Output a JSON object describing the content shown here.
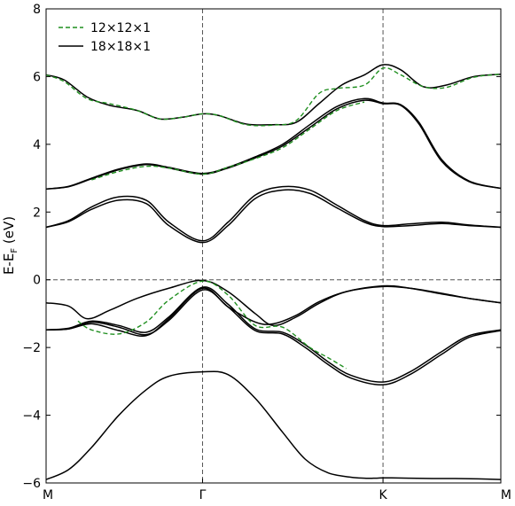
{
  "chart_data": {
    "type": "line",
    "title": "",
    "ylabel": "E-E",
    "ylabel_sub": "F",
    "ylabel_unit": " (eV)",
    "ylim": [
      -6,
      8
    ],
    "yticks": [
      "8",
      "6",
      "4",
      "2",
      "0",
      "−2",
      "−4",
      "−6"
    ],
    "yticks_values": [
      8,
      6,
      4,
      2,
      0,
      -2,
      -4,
      -6
    ],
    "xlim": [
      0,
      1
    ],
    "xticks": [
      "M",
      "Γ",
      "K",
      "M"
    ],
    "xticks_values": [
      0,
      0.3441,
      0.7409,
      1.0
    ],
    "fermi_level": 0,
    "grid": false,
    "legend_position": "top-left",
    "legend": [
      {
        "label": "12×12×1",
        "style": "dashed",
        "color": "#1f8f1f"
      },
      {
        "label": "18×18×1",
        "style": "solid",
        "color": "#000000"
      }
    ],
    "series": [
      {
        "group": "18×18×1",
        "color": "#000000",
        "style": "solid",
        "x": [
          0,
          0.05,
          0.1,
          0.16,
          0.22,
          0.27,
          0.3441,
          0.4,
          0.46,
          0.52,
          0.57,
          0.62,
          0.67,
          0.7,
          0.72,
          0.7409,
          0.76,
          0.8,
          0.85,
          0.9,
          0.95,
          1.0
        ],
        "y": [
          -5.9,
          -5.6,
          -4.95,
          -4.0,
          -3.25,
          -2.85,
          -2.72,
          -2.8,
          -3.5,
          -4.5,
          -5.3,
          -5.7,
          -5.83,
          -5.86,
          -5.86,
          -5.85,
          -5.85,
          -5.86,
          -5.87,
          -5.87,
          -5.88,
          -5.9
        ]
      },
      {
        "group": "18×18×1",
        "color": "#000000",
        "style": "solid",
        "x": [
          0,
          0.05,
          0.1,
          0.16,
          0.22,
          0.27,
          0.3441,
          0.4,
          0.46,
          0.52,
          0.57,
          0.62,
          0.67,
          0.7409,
          0.8,
          0.87,
          0.93,
          1.0
        ],
        "y": [
          -1.48,
          -1.45,
          -1.25,
          -1.4,
          -1.62,
          -1.2,
          -0.3,
          -0.8,
          -1.5,
          -1.6,
          -2.0,
          -2.5,
          -2.9,
          -3.1,
          -2.8,
          -2.2,
          -1.7,
          -1.5
        ]
      },
      {
        "group": "18×18×1",
        "color": "#000000",
        "style": "solid",
        "x": [
          0,
          0.05,
          0.1,
          0.16,
          0.22,
          0.27,
          0.3441,
          0.4,
          0.46,
          0.52,
          0.57,
          0.62,
          0.67,
          0.7409,
          0.8,
          0.87,
          0.93,
          1.0
        ],
        "y": [
          -1.48,
          -1.43,
          -1.22,
          -1.35,
          -1.55,
          -1.1,
          -0.22,
          -0.72,
          -1.45,
          -1.55,
          -1.92,
          -2.42,
          -2.82,
          -3.02,
          -2.72,
          -2.12,
          -1.65,
          -1.48
        ]
      },
      {
        "group": "18×18×1",
        "color": "#000000",
        "style": "solid",
        "x": [
          0,
          0.05,
          0.09,
          0.14,
          0.2,
          0.27,
          0.3441,
          0.4,
          0.46,
          0.5,
          0.55,
          0.6,
          0.66,
          0.7409,
          0.8,
          0.87,
          0.93,
          1.0
        ],
        "y": [
          -0.68,
          -0.78,
          -1.15,
          -0.9,
          -0.55,
          -0.25,
          -0.02,
          -0.35,
          -1.0,
          -1.35,
          -1.1,
          -0.7,
          -0.35,
          -0.18,
          -0.25,
          -0.42,
          -0.55,
          -0.68
        ]
      },
      {
        "group": "18×18×1",
        "color": "#000000",
        "style": "solid",
        "x": [
          0,
          0.05,
          0.1,
          0.16,
          0.22,
          0.27,
          0.3441,
          0.4,
          0.46,
          0.5,
          0.55,
          0.6,
          0.66,
          0.7409,
          0.8,
          0.87,
          0.93,
          1.0
        ],
        "y": [
          -1.48,
          -1.45,
          -1.3,
          -1.5,
          -1.65,
          -1.15,
          -0.25,
          -0.8,
          -1.25,
          -1.3,
          -1.05,
          -0.65,
          -0.35,
          -0.2,
          -0.25,
          -0.4,
          -0.55,
          -0.68
        ]
      },
      {
        "group": "18×18×1",
        "color": "#000000",
        "style": "solid",
        "x": [
          0,
          0.05,
          0.1,
          0.16,
          0.22,
          0.27,
          0.3441,
          0.4,
          0.46,
          0.52,
          0.58,
          0.64,
          0.7,
          0.7409,
          0.8,
          0.87,
          0.93,
          1.0
        ],
        "y": [
          1.55,
          1.75,
          2.15,
          2.45,
          2.35,
          1.7,
          1.15,
          1.7,
          2.5,
          2.75,
          2.65,
          2.2,
          1.75,
          1.6,
          1.65,
          1.7,
          1.62,
          1.55
        ]
      },
      {
        "group": "18×18×1",
        "color": "#000000",
        "style": "solid",
        "x": [
          0,
          0.05,
          0.1,
          0.16,
          0.22,
          0.27,
          0.3441,
          0.4,
          0.46,
          0.52,
          0.58,
          0.64,
          0.7,
          0.7409,
          0.8,
          0.87,
          0.93,
          1.0
        ],
        "y": [
          1.55,
          1.72,
          2.08,
          2.35,
          2.25,
          1.6,
          1.1,
          1.6,
          2.4,
          2.65,
          2.55,
          2.12,
          1.7,
          1.57,
          1.6,
          1.66,
          1.6,
          1.55
        ]
      },
      {
        "group": "18×18×1",
        "color": "#000000",
        "style": "solid",
        "x": [
          0,
          0.05,
          0.1,
          0.16,
          0.22,
          0.27,
          0.3441,
          0.4,
          0.46,
          0.52,
          0.58,
          0.64,
          0.7,
          0.7409,
          0.78,
          0.82,
          0.87,
          0.93,
          1.0
        ],
        "y": [
          2.68,
          2.75,
          2.98,
          3.25,
          3.4,
          3.3,
          3.12,
          3.3,
          3.6,
          3.95,
          4.5,
          5.05,
          5.3,
          5.2,
          5.15,
          4.6,
          3.5,
          2.9,
          2.7
        ]
      },
      {
        "group": "18×18×1",
        "color": "#000000",
        "style": "solid",
        "x": [
          0,
          0.05,
          0.1,
          0.16,
          0.22,
          0.27,
          0.3441,
          0.4,
          0.46,
          0.52,
          0.58,
          0.64,
          0.7,
          0.7409,
          0.78,
          0.82,
          0.87,
          0.93,
          1.0
        ],
        "y": [
          2.68,
          2.76,
          3.0,
          3.27,
          3.42,
          3.32,
          3.14,
          3.32,
          3.63,
          4.0,
          4.58,
          5.12,
          5.35,
          5.22,
          5.17,
          4.65,
          3.55,
          2.92,
          2.7
        ]
      },
      {
        "group": "18×18×1",
        "color": "#000000",
        "style": "solid",
        "x": [
          0,
          0.04,
          0.09,
          0.14,
          0.2,
          0.25,
          0.3,
          0.3441,
          0.38,
          0.44,
          0.5,
          0.55,
          0.6,
          0.65,
          0.7,
          0.7409,
          0.78,
          0.83,
          0.88,
          0.94,
          1.0
        ],
        "y": [
          6.05,
          5.9,
          5.4,
          5.15,
          5.0,
          4.75,
          4.8,
          4.9,
          4.85,
          4.6,
          4.58,
          4.65,
          5.2,
          5.75,
          6.05,
          6.35,
          6.2,
          5.7,
          5.75,
          6.0,
          6.07
        ]
      },
      {
        "group": "12×12×1",
        "color": "#1f8f1f",
        "style": "dashed",
        "x": [
          0,
          0.04,
          0.09,
          0.14,
          0.2,
          0.25,
          0.3,
          0.3441,
          0.38,
          0.44,
          0.5,
          0.55,
          0.6,
          0.64,
          0.7,
          0.7409,
          0.78,
          0.83,
          0.88,
          0.94,
          1.0
        ],
        "y": [
          6.05,
          5.85,
          5.35,
          5.2,
          5.0,
          4.75,
          4.8,
          4.9,
          4.85,
          4.58,
          4.57,
          4.7,
          5.5,
          5.65,
          5.75,
          6.25,
          6.05,
          5.7,
          5.68,
          5.98,
          6.07
        ]
      },
      {
        "group": "12×12×1",
        "color": "#1f8f1f",
        "style": "dashed",
        "x": [
          0.07,
          0.1,
          0.16,
          0.22,
          0.27,
          0.3441,
          0.4,
          0.46,
          0.52,
          0.58,
          0.62,
          0.66
        ],
        "y": [
          -1.22,
          -1.48,
          -1.6,
          -1.25,
          -0.6,
          -0.04,
          -0.45,
          -1.35,
          -1.4,
          -2.0,
          -2.3,
          -2.62
        ]
      },
      {
        "group": "12×12×1",
        "color": "#1f8f1f",
        "style": "dashed",
        "x": [
          0.1,
          0.16,
          0.22,
          0.27,
          0.3441,
          0.4,
          0.46,
          0.52,
          0.58,
          0.64,
          0.7
        ],
        "y": [
          2.95,
          3.2,
          3.35,
          3.3,
          3.12,
          3.32,
          3.58,
          3.9,
          4.45,
          5.0,
          5.25
        ]
      }
    ]
  }
}
